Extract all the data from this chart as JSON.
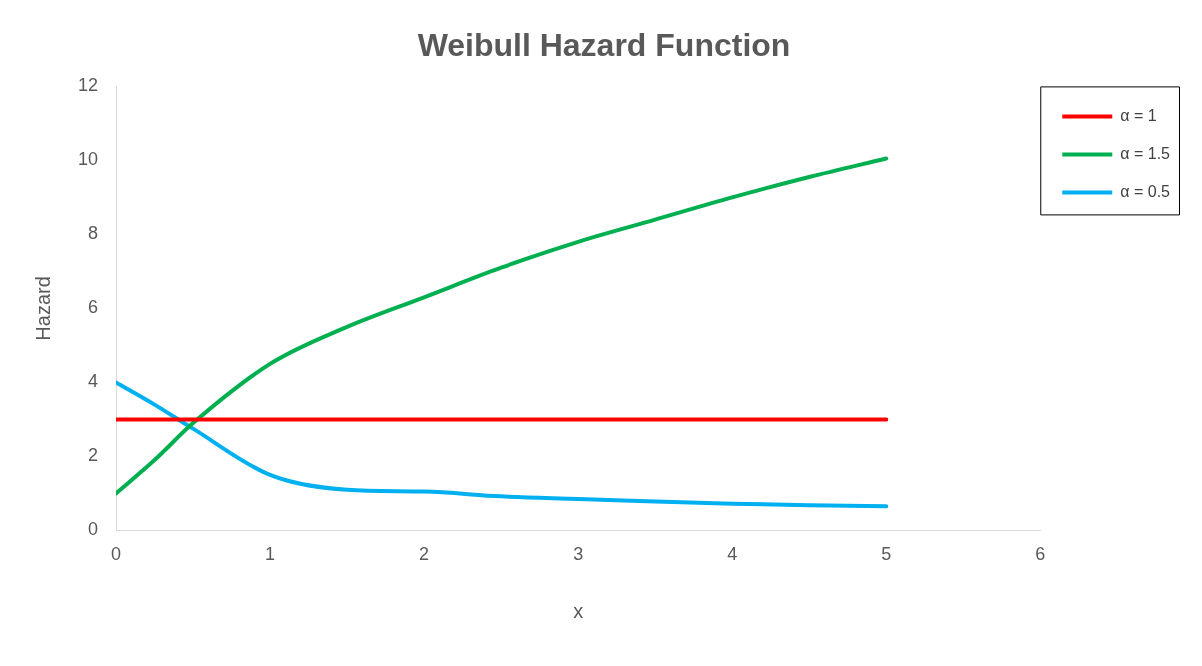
{
  "chart_data": {
    "type": "line",
    "title": "Weibull Hazard Function",
    "xlabel": "x",
    "ylabel": "Hazard",
    "xlim": [
      0,
      6
    ],
    "xticks": [
      0,
      1,
      2,
      3,
      4,
      5,
      6
    ],
    "ylim": [
      0,
      12
    ],
    "yticks": [
      0,
      2,
      4,
      6,
      8,
      10,
      12
    ],
    "grid": false,
    "legend": "right",
    "marker": "none",
    "line_style": "solid",
    "series": [
      {
        "name": "α = 1",
        "color": "#ff0000",
        "x": [
          0,
          1,
          2,
          3,
          4,
          5
        ],
        "values": [
          3,
          3,
          3,
          3,
          3,
          3
        ]
      },
      {
        "name": "α = 1.5",
        "color": "#00b050",
        "x": [
          0,
          0.25,
          0.5,
          1,
          1.5,
          2,
          2.5,
          3,
          3.5,
          4,
          4.5,
          5
        ],
        "values": [
          1,
          1.9,
          2.9,
          4.5,
          5.5,
          6.3,
          7.1,
          7.8,
          8.4,
          9.0,
          9.55,
          10.05
        ]
      },
      {
        "name": "α = 0.5",
        "color": "#00b0f0",
        "x": [
          0,
          0.25,
          0.5,
          1,
          1.5,
          2,
          2.5,
          3,
          3.5,
          4,
          4.5,
          5
        ],
        "values": [
          4,
          3.4,
          2.75,
          1.5,
          1.1,
          1.05,
          0.92,
          0.85,
          0.78,
          0.72,
          0.68,
          0.65
        ]
      }
    ]
  }
}
